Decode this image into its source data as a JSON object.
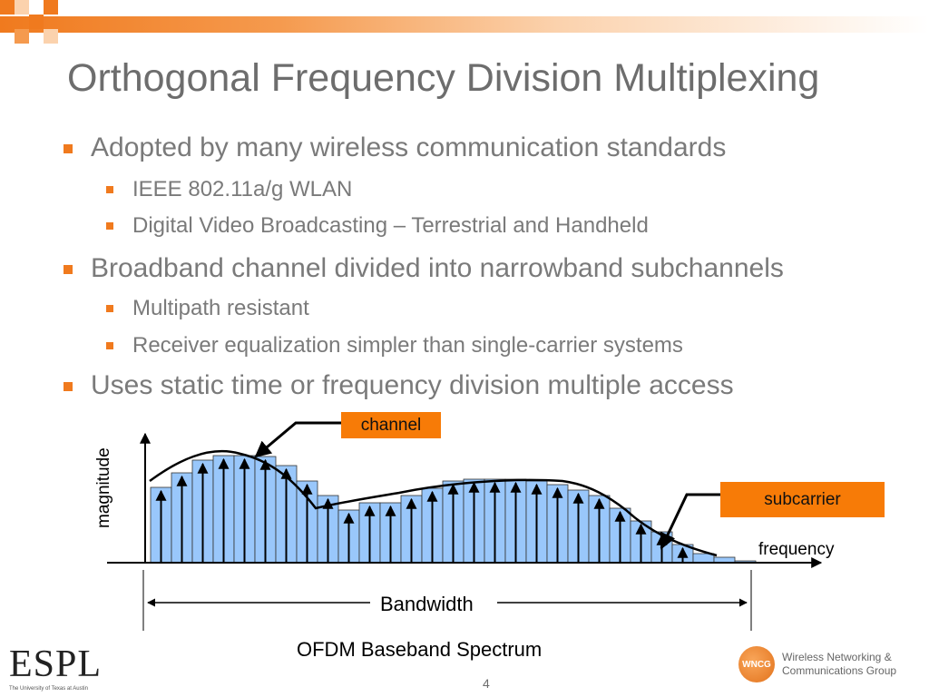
{
  "title": "Orthogonal Frequency Division Multiplexing",
  "bullets": {
    "b1": "Adopted by many wireless communication standards",
    "b1_1": "IEEE 802.11a/g WLAN",
    "b1_2": "Digital Video Broadcasting – Terrestrial and Handheld",
    "b2": "Broadband channel divided into narrowband subchannels",
    "b2_1": "Multipath resistant",
    "b2_2": "Receiver equalization simpler than single-carrier systems",
    "b3": "Uses static time or frequency division multiple access"
  },
  "diagram": {
    "channel_label": "channel",
    "subcarrier_label": "subcarrier",
    "magnitude_label": "magnitude",
    "frequency_label": "frequency",
    "bandwidth_label": "Bandwidth",
    "caption": "OFDM Baseband Spectrum"
  },
  "page_number": "4",
  "logos": {
    "espl_text": "ESPL",
    "espl_small": "The University of Texas at Austin",
    "wncg_badge": "WNCG",
    "wncg_line1": "Wireless Networking &",
    "wncg_line2": "Communications Group"
  },
  "colors": {
    "accent": "#f07a1e",
    "title": "#6d6d6d",
    "callout": "#f77b07",
    "subcarrier_fill": "#99c7fb"
  }
}
